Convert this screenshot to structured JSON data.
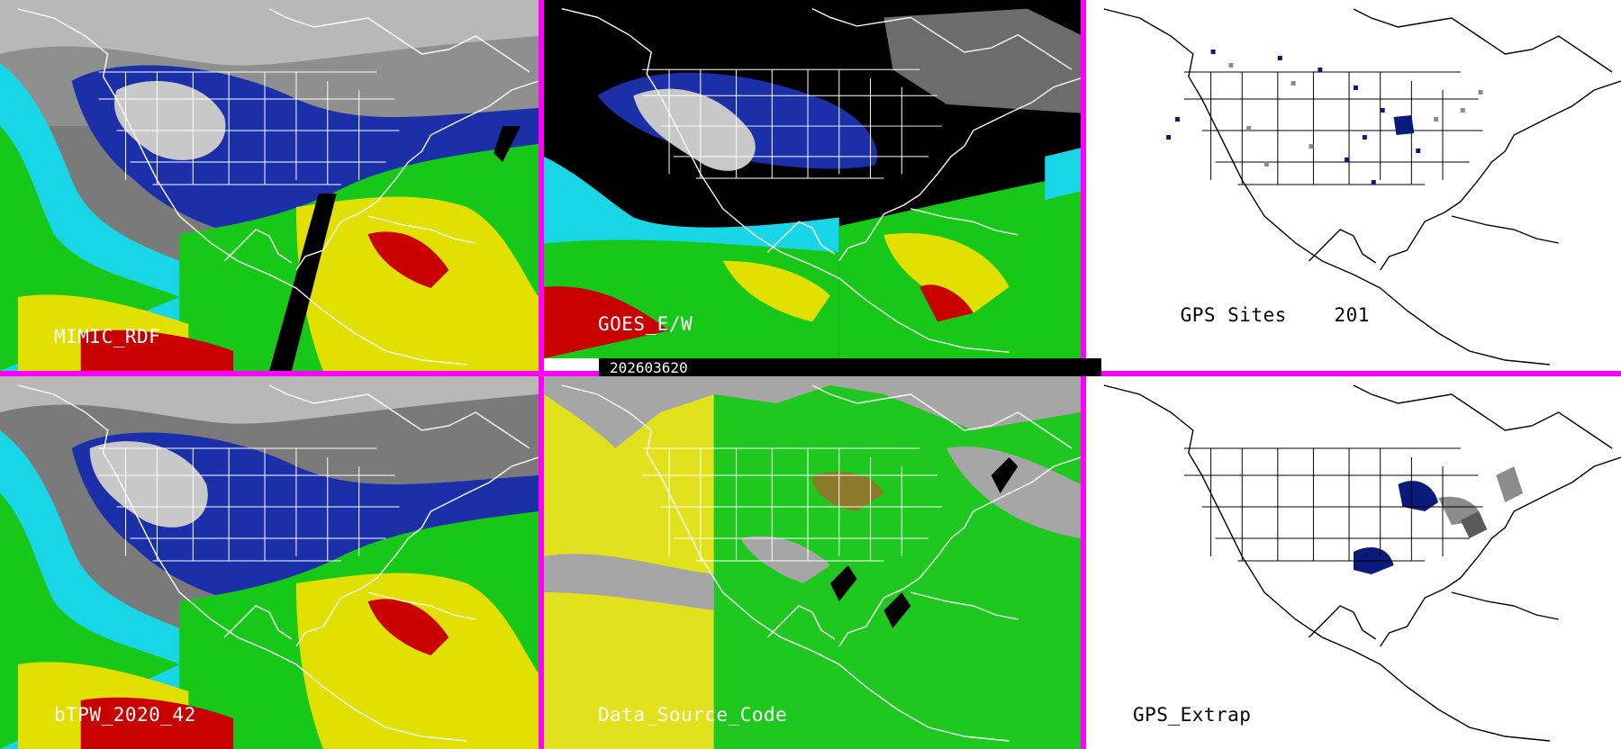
{
  "panels": [
    {
      "id": "mimic",
      "label": "MIMIC_RDF"
    },
    {
      "id": "goes",
      "label": "GOES_E/W"
    },
    {
      "id": "gps-sites",
      "label": "GPS Sites",
      "count": "201"
    },
    {
      "id": "btpw",
      "label": "bTPW_2020_42"
    },
    {
      "id": "dsc",
      "label": "Data_Source_Code"
    },
    {
      "id": "gps-extrap",
      "label": "GPS_Extrap"
    }
  ],
  "timestamp": "202603620",
  "colors": {
    "divider": "#ff00ff",
    "dry": "#1a2fa8",
    "moist": "#19d6e6",
    "moderate": "#18c818",
    "humid": "#e1e000",
    "very_humid": "#c80000",
    "source_a": "#e1e11e",
    "source_b": "#1ec81e",
    "source_c": "#a6a6a6",
    "source_d": "#8c7a2a",
    "site_blue": "#0a1a7a",
    "site_gray": "#8c8c8c"
  }
}
